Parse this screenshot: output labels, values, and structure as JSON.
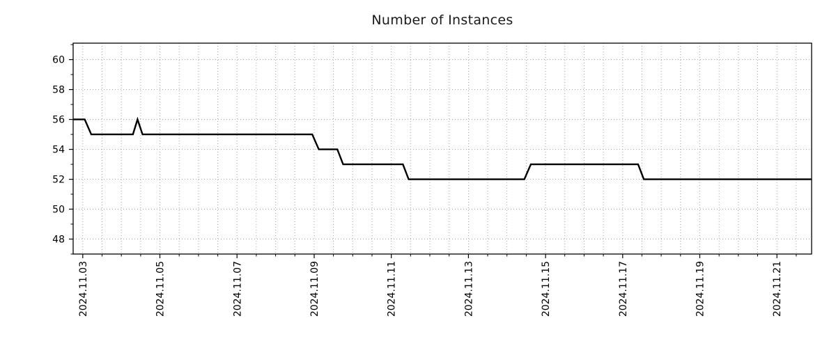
{
  "chart_data": {
    "type": "line",
    "title": "Number of Instances",
    "x_axis": {
      "tick_labels": [
        "2024.11.03",
        "2024.11.05",
        "2024.11.07",
        "2024.11.09",
        "2024.11.11",
        "2024.11.13",
        "2024.11.15",
        "2024.11.17",
        "2024.11.19",
        "2024.11.21"
      ],
      "tick_days": [
        0,
        2,
        4,
        6,
        8,
        10,
        12,
        14,
        16,
        18
      ],
      "minor_step_days": 0.5,
      "lim_days": [
        -0.25,
        18.9
      ]
    },
    "y_axis": {
      "ticks": [
        48,
        50,
        52,
        54,
        56,
        58,
        60
      ],
      "minor_step": 1,
      "lim": [
        47.0,
        61.1
      ]
    },
    "grid": {
      "show": true,
      "color": "#9b9b9b",
      "style": "dotted"
    },
    "axis_color": "#000000",
    "tick_label_color": "#000000",
    "tick_label_size": 14,
    "series": [
      {
        "color": "#000000",
        "width": 2.4,
        "points_day_value": [
          [
            -0.25,
            56
          ],
          [
            0.05,
            56
          ],
          [
            0.22,
            55
          ],
          [
            1.3,
            55
          ],
          [
            1.42,
            56
          ],
          [
            1.55,
            55
          ],
          [
            5.95,
            55
          ],
          [
            6.12,
            54
          ],
          [
            6.6,
            54
          ],
          [
            6.75,
            53
          ],
          [
            8.3,
            53
          ],
          [
            8.45,
            52
          ],
          [
            11.45,
            52
          ],
          [
            11.62,
            53
          ],
          [
            14.4,
            53
          ],
          [
            14.55,
            52
          ],
          [
            18.9,
            52
          ]
        ]
      }
    ]
  }
}
